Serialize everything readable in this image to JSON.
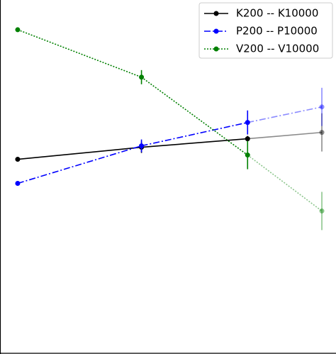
{
  "chart_data": {
    "type": "line",
    "x": [
      0.5,
      4.0,
      7.0,
      9.1
    ],
    "xlim": [
      0,
      9.5
    ],
    "ylim": [
      0,
      5
    ],
    "legend": "upper right",
    "series": [
      {
        "name": "K200 -- K10000",
        "color": "#000000",
        "linestyle": "solid",
        "values": [
          2.75,
          2.92,
          3.04,
          3.13
        ],
        "errors": [
          0.03,
          0.08,
          0.04,
          0.27
        ]
      },
      {
        "name": "P200 -- P10000",
        "color": "#0000ff",
        "linestyle": "dashdot",
        "values": [
          2.41,
          2.94,
          3.27,
          3.49
        ],
        "errors": [
          0.03,
          0.09,
          0.17,
          0.27
        ]
      },
      {
        "name": "V200 -- V10000",
        "color": "#008000",
        "linestyle": "dotted",
        "values": [
          4.58,
          3.91,
          2.81,
          2.02
        ],
        "errors": [
          0.02,
          0.1,
          0.2,
          0.27
        ]
      }
    ]
  }
}
